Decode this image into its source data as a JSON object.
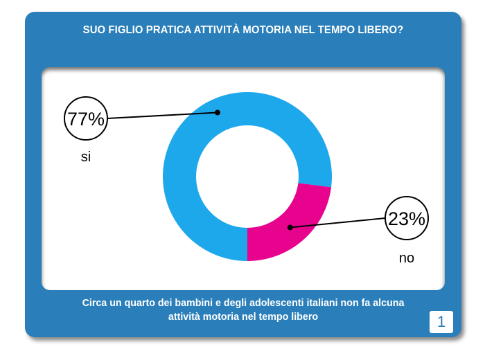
{
  "header": {
    "title": "SUO FIGLIO PRATICA ATTIVITÀ MOTORIA NEL TEMPO LIBERO?"
  },
  "footer": {
    "caption_line1": "Circa un  quarto dei bambini e degli adolescenti italiani non fa alcuna",
    "caption_line2": "attività motoria nel tempo libero",
    "page_number": "1"
  },
  "colors": {
    "frame": "#2a7fba",
    "si": "#1ea8ec",
    "no": "#e8038f"
  },
  "chart_data": {
    "type": "pie",
    "donut": true,
    "title": "SUO FIGLIO PRATICA ATTIVITÀ MOTORIA NEL TEMPO LIBERO?",
    "slices": [
      {
        "label": "si",
        "value": 77,
        "display": "77%",
        "color": "#1ea8ec"
      },
      {
        "label": "no",
        "value": 23,
        "display": "23%",
        "color": "#e8038f"
      }
    ]
  }
}
